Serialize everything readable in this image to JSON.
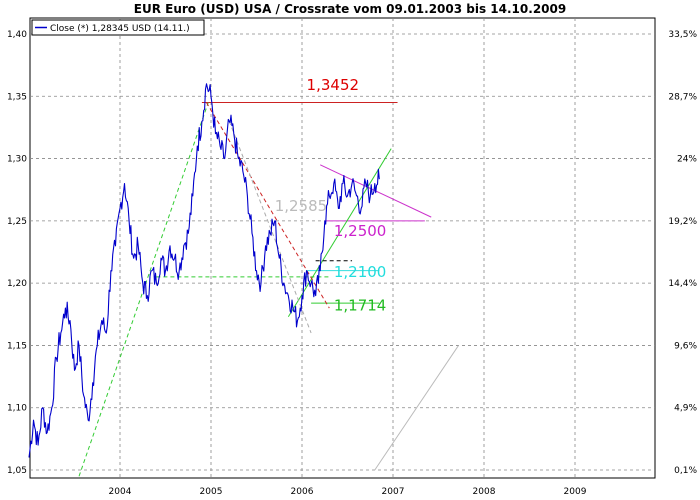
{
  "chart_data": {
    "type": "line",
    "title": "EUR Euro (USD) USA / Crossrate vom 09.01.2003 bis 14.10.2009",
    "legend": {
      "label": "Close (*) 1,28345 USD (14.11.)",
      "position": "top-left"
    },
    "x_ticks": [
      "2004",
      "2005",
      "2006",
      "2007",
      "2008",
      "2009"
    ],
    "x_range": [
      "2003.01",
      "2009.85"
    ],
    "y_left_ticks": [
      "1,40",
      "1,35",
      "1,30",
      "1,25",
      "1,20",
      "1,15",
      "1,10",
      "1,05"
    ],
    "y_right_ticks": [
      "33,5%",
      "28,7%",
      "24%",
      "19,2%",
      "14,4%",
      "9,6%",
      "4,9%",
      "0,1%"
    ],
    "ylim": [
      1.05,
      1.4
    ],
    "grid": true,
    "series": [
      {
        "name": "Close (*) 1,28345 USD (14.11.)",
        "color": "#0000cc",
        "points": [
          [
            2003.0,
            1.06
          ],
          [
            2003.05,
            1.09
          ],
          [
            2003.1,
            1.07
          ],
          [
            2003.15,
            1.1
          ],
          [
            2003.2,
            1.08
          ],
          [
            2003.25,
            1.1
          ],
          [
            2003.3,
            1.14
          ],
          [
            2003.35,
            1.16
          ],
          [
            2003.4,
            1.18
          ],
          [
            2003.45,
            1.17
          ],
          [
            2003.5,
            1.13
          ],
          [
            2003.55,
            1.15
          ],
          [
            2003.6,
            1.11
          ],
          [
            2003.65,
            1.09
          ],
          [
            2003.7,
            1.12
          ],
          [
            2003.75,
            1.15
          ],
          [
            2003.8,
            1.17
          ],
          [
            2003.85,
            1.16
          ],
          [
            2003.9,
            1.21
          ],
          [
            2003.95,
            1.23
          ],
          [
            2004.0,
            1.26
          ],
          [
            2004.05,
            1.28
          ],
          [
            2004.1,
            1.25
          ],
          [
            2004.15,
            1.22
          ],
          [
            2004.2,
            1.23
          ],
          [
            2004.25,
            1.2
          ],
          [
            2004.3,
            1.19
          ],
          [
            2004.35,
            1.21
          ],
          [
            2004.4,
            1.2
          ],
          [
            2004.45,
            1.22
          ],
          [
            2004.5,
            1.21
          ],
          [
            2004.55,
            1.23
          ],
          [
            2004.6,
            1.22
          ],
          [
            2004.65,
            1.21
          ],
          [
            2004.7,
            1.23
          ],
          [
            2004.75,
            1.24
          ],
          [
            2004.8,
            1.27
          ],
          [
            2004.85,
            1.31
          ],
          [
            2004.9,
            1.33
          ],
          [
            2004.95,
            1.36
          ],
          [
            2005.0,
            1.35
          ],
          [
            2005.05,
            1.32
          ],
          [
            2005.1,
            1.31
          ],
          [
            2005.15,
            1.3
          ],
          [
            2005.2,
            1.33
          ],
          [
            2005.25,
            1.32
          ],
          [
            2005.3,
            1.3
          ],
          [
            2005.35,
            1.29
          ],
          [
            2005.4,
            1.27
          ],
          [
            2005.45,
            1.24
          ],
          [
            2005.5,
            1.21
          ],
          [
            2005.55,
            1.2
          ],
          [
            2005.6,
            1.23
          ],
          [
            2005.65,
            1.24
          ],
          [
            2005.7,
            1.25
          ],
          [
            2005.75,
            1.22
          ],
          [
            2005.8,
            1.2
          ],
          [
            2005.85,
            1.19
          ],
          [
            2005.9,
            1.18
          ],
          [
            2005.95,
            1.17
          ],
          [
            2006.0,
            1.19
          ],
          [
            2006.05,
            1.21
          ],
          [
            2006.1,
            1.2
          ],
          [
            2006.15,
            1.19
          ],
          [
            2006.2,
            1.21
          ],
          [
            2006.25,
            1.25
          ],
          [
            2006.3,
            1.27
          ],
          [
            2006.35,
            1.28
          ],
          [
            2006.4,
            1.26
          ],
          [
            2006.45,
            1.28
          ],
          [
            2006.5,
            1.27
          ],
          [
            2006.55,
            1.28
          ],
          [
            2006.6,
            1.27
          ],
          [
            2006.65,
            1.26
          ],
          [
            2006.7,
            1.28
          ],
          [
            2006.75,
            1.27
          ],
          [
            2006.8,
            1.28
          ],
          [
            2006.85,
            1.28345
          ]
        ]
      }
    ],
    "trend_lines": [
      {
        "from": [
          2004.9,
          1.345
        ],
        "to": [
          2007.05,
          1.345
        ],
        "color": "#cc2222",
        "style": "solid"
      },
      {
        "from": [
          2006.2,
          1.295
        ],
        "to": [
          2007.42,
          1.253
        ],
        "color": "#cc33cc",
        "style": "solid"
      },
      {
        "from": [
          2006.25,
          1.25
        ],
        "to": [
          2007.35,
          1.25
        ],
        "color": "#cc33cc",
        "style": "solid"
      },
      {
        "from": [
          2006.05,
          1.21
        ],
        "to": [
          2006.85,
          1.21
        ],
        "color": "#33dddd",
        "style": "solid"
      },
      {
        "from": [
          2006.1,
          1.184
        ],
        "to": [
          2006.85,
          1.184
        ],
        "color": "#33cc33",
        "style": "solid"
      },
      {
        "from": [
          2005.85,
          1.173
        ],
        "to": [
          2006.98,
          1.308
        ],
        "color": "#33cc33",
        "style": "solid"
      },
      {
        "from": [
          2003.55,
          1.045
        ],
        "to": [
          2004.97,
          1.345
        ],
        "color": "#33cc33",
        "style": "dashed"
      },
      {
        "from": [
          2004.4,
          1.205
        ],
        "to": [
          2006.3,
          1.205
        ],
        "color": "#33cc33",
        "style": "dashed"
      },
      {
        "from": [
          2004.95,
          1.345
        ],
        "to": [
          2006.3,
          1.18
        ],
        "color": "#cc2222",
        "style": "dashed"
      },
      {
        "from": [
          2005.2,
          1.33
        ],
        "to": [
          2006.1,
          1.16
        ],
        "color": "#aaaaaa",
        "style": "dashed"
      },
      {
        "from": [
          2006.15,
          1.218
        ],
        "to": [
          2006.55,
          1.218
        ],
        "color": "#000000",
        "style": "dashed"
      },
      {
        "from": [
          2006.8,
          1.05
        ],
        "to": [
          2007.72,
          1.15
        ],
        "color": "#bbbbbb",
        "style": "solid"
      }
    ],
    "annotations": [
      {
        "text": "1,3452",
        "x": 2006.05,
        "y": 1.355,
        "color": "#dd0000"
      },
      {
        "text": "1,2585",
        "x": 2005.7,
        "y": 1.258,
        "color": "#bbbbbb"
      },
      {
        "text": "1,2500",
        "x": 2006.35,
        "y": 1.238,
        "color": "#cc22cc"
      },
      {
        "text": "1,2100",
        "x": 2006.35,
        "y": 1.205,
        "color": "#22dddd"
      },
      {
        "text": "1,1714",
        "x": 2006.35,
        "y": 1.178,
        "color": "#22bb22"
      }
    ]
  }
}
